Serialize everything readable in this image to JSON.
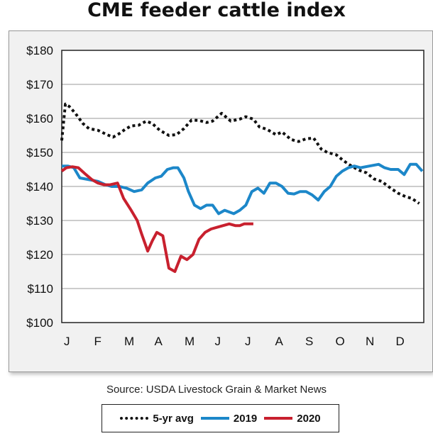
{
  "title": "CME feeder cattle index",
  "source": "Source: USDA Livestock Grain & Market News",
  "chart_data": {
    "type": "line",
    "title": "CME feeder cattle index",
    "xlabel": "",
    "ylabel": "",
    "ylim": [
      100,
      180
    ],
    "xlim": [
      0,
      12
    ],
    "month_labels": [
      "J",
      "F",
      "M",
      "A",
      "M",
      "J",
      "J",
      "A",
      "S",
      "O",
      "N",
      "D"
    ],
    "y_ticks": [
      100,
      110,
      120,
      130,
      140,
      150,
      160,
      170,
      180
    ],
    "y_tick_labels": [
      "$100",
      "$110",
      "$120",
      "$130",
      "$140",
      "$150",
      "$160",
      "$170",
      "$180"
    ],
    "grid": true,
    "legend_position": "bottom",
    "series": [
      {
        "name": "5-yr avg",
        "color": "#111111",
        "style": "dotted",
        "x": [
          0.0,
          0.12,
          0.25,
          0.45,
          0.7,
          0.9,
          1.2,
          1.5,
          1.7,
          1.9,
          2.1,
          2.3,
          2.55,
          2.8,
          3.0,
          3.25,
          3.55,
          3.8,
          4.05,
          4.3,
          4.55,
          4.8,
          5.0,
          5.3,
          5.6,
          5.9,
          6.1,
          6.35,
          6.55,
          6.8,
          7.1,
          7.3,
          7.6,
          7.85,
          8.1,
          8.35,
          8.6,
          8.8,
          9.1,
          9.35,
          9.6,
          9.85,
          10.1,
          10.35,
          10.6,
          10.9,
          11.15,
          11.4,
          11.6,
          11.85
        ],
        "values": [
          153.5,
          164.2,
          163.5,
          161.5,
          158.5,
          157.0,
          156.5,
          155.2,
          154.5,
          155.5,
          156.8,
          157.8,
          158.0,
          159.2,
          158.5,
          156.5,
          155.0,
          155.2,
          157.0,
          159.5,
          159.4,
          158.8,
          159.2,
          161.5,
          159.2,
          159.8,
          160.5,
          159.8,
          157.5,
          156.8,
          155.2,
          156.0,
          153.8,
          153.2,
          154.0,
          154.2,
          151.0,
          150.0,
          149.3,
          147.5,
          146.0,
          144.8,
          144.0,
          142.2,
          141.5,
          139.5,
          138.0,
          137.0,
          136.5,
          135.0
        ]
      },
      {
        "name": "2019",
        "color": "#1c87c9",
        "style": "solid",
        "x": [
          0.0,
          0.2,
          0.4,
          0.6,
          0.9,
          1.2,
          1.45,
          1.65,
          1.9,
          2.15,
          2.4,
          2.65,
          2.85,
          3.1,
          3.3,
          3.5,
          3.7,
          3.85,
          4.05,
          4.2,
          4.4,
          4.6,
          4.8,
          5.0,
          5.2,
          5.4,
          5.55,
          5.7,
          5.9,
          6.1,
          6.3,
          6.5,
          6.7,
          6.9,
          7.1,
          7.3,
          7.5,
          7.7,
          7.9,
          8.1,
          8.3,
          8.5,
          8.7,
          8.9,
          9.1,
          9.3,
          9.5,
          9.7,
          9.9,
          10.2,
          10.5,
          10.7,
          10.9,
          11.15,
          11.35,
          11.55,
          11.75,
          11.95
        ],
        "values": [
          146.0,
          146.0,
          145.5,
          142.5,
          142.0,
          141.5,
          140.5,
          140.0,
          140.0,
          139.5,
          138.5,
          139.0,
          141.0,
          142.5,
          143.0,
          145.0,
          145.5,
          145.5,
          142.5,
          138.5,
          134.5,
          133.5,
          134.5,
          134.5,
          132.0,
          133.0,
          132.5,
          132.0,
          133.0,
          134.5,
          138.5,
          139.5,
          138.0,
          141.0,
          141.0,
          140.0,
          138.0,
          137.8,
          138.5,
          138.5,
          137.5,
          136.0,
          138.5,
          140.0,
          143.0,
          144.5,
          145.5,
          146.0,
          145.5,
          146.0,
          146.5,
          145.5,
          145.0,
          145.0,
          143.5,
          146.5,
          146.5,
          144.5
        ]
      },
      {
        "name": "2020",
        "color": "#c8202e",
        "style": "solid",
        "x": [
          0.0,
          0.15,
          0.35,
          0.55,
          0.8,
          1.0,
          1.2,
          1.4,
          1.6,
          1.85,
          2.05,
          2.3,
          2.5,
          2.65,
          2.85,
          3.0,
          3.15,
          3.35,
          3.55,
          3.75,
          3.95,
          4.15,
          4.35,
          4.55,
          4.75,
          4.95,
          5.15,
          5.35,
          5.55,
          5.75,
          5.9,
          6.05,
          6.2,
          6.35
        ],
        "values": [
          144.5,
          145.5,
          145.8,
          145.5,
          143.5,
          142.0,
          141.0,
          140.5,
          140.5,
          141.0,
          136.5,
          133.0,
          130.0,
          126.0,
          121.0,
          124.0,
          126.5,
          125.5,
          116.0,
          115.0,
          119.5,
          118.5,
          120.0,
          124.5,
          126.5,
          127.5,
          128.0,
          128.5,
          129.0,
          128.5,
          128.5,
          129.0,
          129.0,
          129.0
        ]
      }
    ]
  },
  "legend": {
    "items": [
      {
        "label": "5-yr avg",
        "color": "#111111",
        "style": "dotted"
      },
      {
        "label": "2019",
        "color": "#1c87c9",
        "style": "solid"
      },
      {
        "label": "2020",
        "color": "#c8202e",
        "style": "solid"
      }
    ]
  }
}
